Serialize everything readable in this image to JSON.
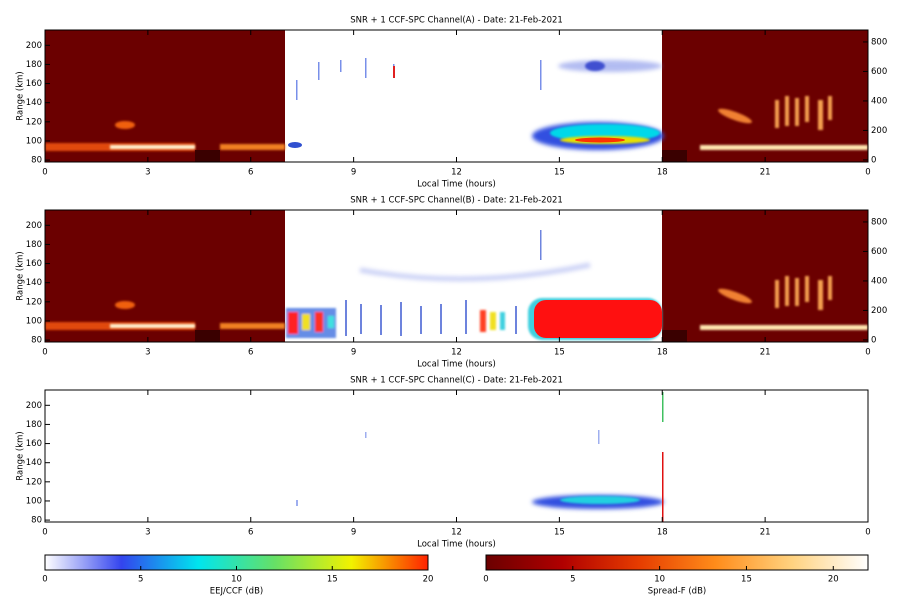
{
  "chart_data": [
    {
      "type": "heatmap",
      "title": "SNR + 1 CCF-SPC Channel(A) - Date: 21-Feb-2021",
      "xlabel": "Local Time (hours)",
      "ylabel": "Range (km)",
      "xlim": [
        0,
        24
      ],
      "xticks": [
        0,
        3,
        6,
        9,
        12,
        15,
        18,
        21,
        {
          "value": 24,
          "label": "0"
        }
      ],
      "ylim": [
        78,
        216
      ],
      "yticks": [
        80,
        100,
        120,
        140,
        160,
        180,
        200
      ],
      "y2lim": [
        -14,
        881
      ],
      "y2ticks": [
        0,
        200,
        400,
        600,
        800
      ]
    },
    {
      "type": "heatmap",
      "title": "SNR + 1 CCF-SPC Channel(B) - Date: 21-Feb-2021",
      "xlabel": "Local Time (hours)",
      "ylabel": "Range (km)",
      "xlim": [
        0,
        24
      ],
      "xticks": [
        0,
        3,
        6,
        9,
        12,
        15,
        18,
        21,
        {
          "value": 24,
          "label": "0"
        }
      ],
      "ylim": [
        78,
        216
      ],
      "yticks": [
        80,
        100,
        120,
        140,
        160,
        180,
        200
      ],
      "y2lim": [
        -14,
        881
      ],
      "y2ticks": [
        0,
        200,
        400,
        600,
        800
      ]
    },
    {
      "type": "heatmap",
      "title": "SNR + 1 CCF-SPC Channel(C) - Date: 21-Feb-2021",
      "xlabel": "Local Time (hours)",
      "ylabel": "Range (km)",
      "xlim": [
        0,
        24
      ],
      "xticks": [
        0,
        3,
        6,
        9,
        12,
        15,
        18,
        21,
        {
          "value": 24,
          "label": "0"
        }
      ],
      "ylim": [
        78,
        216
      ],
      "yticks": [
        80,
        100,
        120,
        140,
        160,
        180,
        200
      ]
    },
    {
      "type": "colorbar",
      "xlabel": "EEJ/CCF (dB)",
      "xlim": [
        0,
        20
      ],
      "xticks": [
        0,
        5,
        10,
        15,
        20
      ],
      "colors": [
        "#ffffff",
        "#3344ee",
        "#00e5ee",
        "#66e066",
        "#f2f200",
        "#ff2200"
      ]
    },
    {
      "type": "colorbar",
      "xlabel": "Spread-F (dB)",
      "xlim": [
        0,
        22
      ],
      "xticks": [
        0,
        5,
        10,
        15,
        20
      ],
      "colors": [
        "#6b0000",
        "#b00000",
        "#e63c00",
        "#ff8c1a",
        "#ffd27f",
        "#ffffff"
      ]
    }
  ]
}
